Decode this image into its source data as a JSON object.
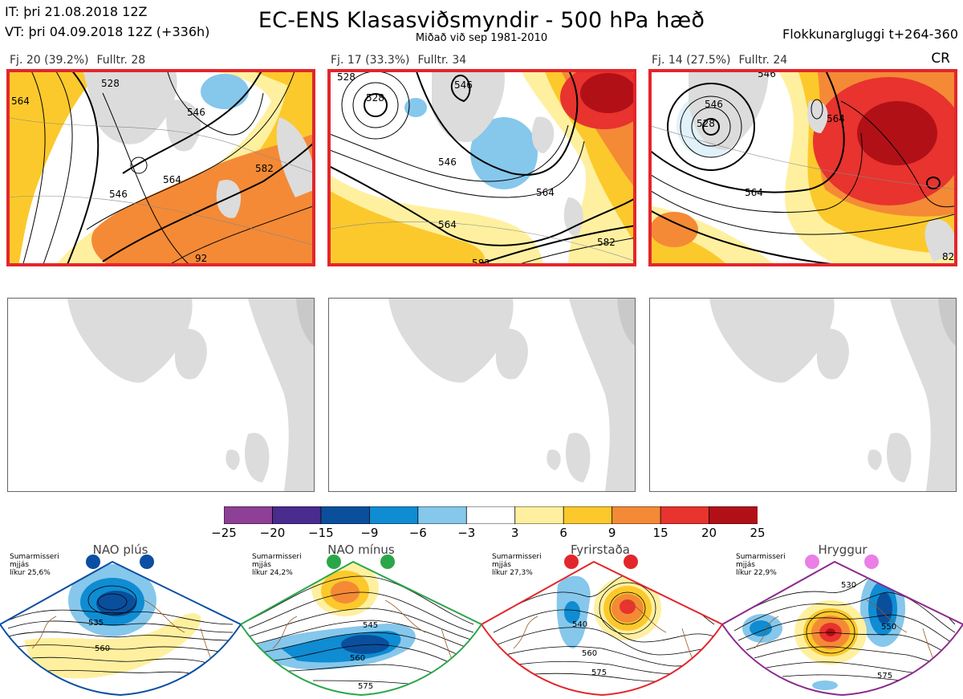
{
  "header": {
    "init_time": "IT: þri 21.08.2018 12Z",
    "valid_time": "VT: þri 04.09.2018 12Z  (+336h)",
    "title": "EC-ENS Klasasviðsmyndir - 500 hPa hæð",
    "subtitle": "Miðað við sep 1981-2010",
    "window": "Flokkunargluggi t+264-360"
  },
  "clusters": [
    {
      "count": "Fj. 20 (39.2%)",
      "rep": "Fulltr. 28",
      "contours": [
        "528",
        "546",
        "564",
        "582",
        "564",
        "546",
        "92"
      ]
    },
    {
      "count": "Fj. 17 (33.3%)",
      "rep": "Fulltr. 34",
      "contours": [
        "528",
        "546",
        "564",
        "582",
        "582",
        "546"
      ]
    },
    {
      "count": "Fj. 14 (27.5%)",
      "rep": "Fulltr. 24",
      "extra": "CR",
      "contours": [
        "546",
        "528",
        "564",
        "564",
        "82"
      ]
    }
  ],
  "colorbar": {
    "colors": [
      "#8e3f96",
      "#4a2b8e",
      "#0a4f9c",
      "#0f8cd2",
      "#86c7ec",
      "#ffffff",
      "#fff0a0",
      "#fcc92c",
      "#f48a36",
      "#e8332e",
      "#b21017"
    ],
    "labels": [
      "−25",
      "−20",
      "−15",
      "−9",
      "−6",
      "−3",
      "3",
      "6",
      "9",
      "15",
      "20",
      "25"
    ]
  },
  "regimes": [
    {
      "name": "NAO plús",
      "season": "Sumarmisseri",
      "smooth": "mjjás",
      "prob": "líkur 25,6%",
      "color": "#0b4ea2",
      "dot": "#0b4ea2",
      "contours": [
        "535",
        "560"
      ]
    },
    {
      "name": "NAO mínus",
      "season": "Sumarmisseri",
      "smooth": "mjjás",
      "prob": "líkur 24,2%",
      "color": "#2aa64a",
      "dot": "#2aa64a",
      "contours": [
        "545",
        "560",
        "575"
      ]
    },
    {
      "name": "Fyrirstaða",
      "season": "Sumarmisseri",
      "smooth": "mjjás",
      "prob": "líkur 27,3%",
      "color": "#e3262b",
      "dot": "#e3262b",
      "contours": [
        "540",
        "560",
        "575"
      ]
    },
    {
      "name": "Hryggur",
      "season": "Sumarmisseri",
      "smooth": "mjjás",
      "prob": "líkur 22,9%",
      "color": "#8b2a8e",
      "dot": "#ea7fe6",
      "contours": [
        "530",
        "550",
        "575"
      ]
    }
  ]
}
